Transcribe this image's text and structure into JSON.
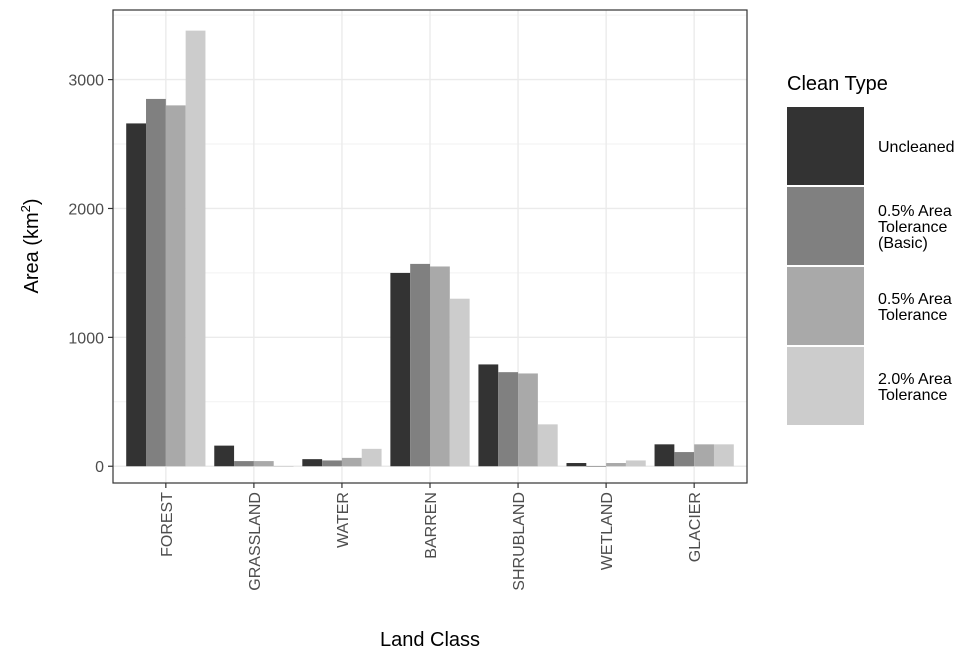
{
  "chart_data": {
    "type": "bar",
    "title": "",
    "xlabel": "Land Class",
    "ylabel": "Area (km",
    "ylabel_superscript": "2",
    "ylabel_suffix": ")",
    "categories": [
      "FOREST",
      "GRASSLAND",
      "WATER",
      "BARREN",
      "SHRUBLAND",
      "WETLAND",
      "GLACIER"
    ],
    "yticks": [
      0,
      1000,
      2000,
      3000
    ],
    "ytick_labels": [
      "0",
      "1000",
      "2000",
      "3000"
    ],
    "ylim": [
      -130,
      3540
    ],
    "grid": true,
    "legend": {
      "title": "Clean Type",
      "position": "right"
    },
    "series": [
      {
        "name": "Uncleaned",
        "label_lines": [
          "Uncleaned"
        ],
        "color": "#333333",
        "values": [
          2660,
          160,
          55,
          1500,
          790,
          25,
          170
        ]
      },
      {
        "name": "0.5% Area Tolerance (Basic)",
        "label_lines": [
          "0.5% Area",
          "Tolerance",
          "(Basic)"
        ],
        "color": "#808080",
        "values": [
          2850,
          40,
          45,
          1570,
          730,
          -5,
          110
        ]
      },
      {
        "name": "0.5% Area Tolerance",
        "label_lines": [
          "0.5% Area",
          "Tolerance"
        ],
        "color": "#a9a9a9",
        "values": [
          2800,
          40,
          65,
          1550,
          720,
          25,
          170
        ]
      },
      {
        "name": "2.0% Area Tolerance",
        "label_lines": [
          "2.0% Area",
          "Tolerance"
        ],
        "color": "#cccccc",
        "values": [
          3380,
          -5,
          135,
          1300,
          325,
          45,
          170
        ]
      }
    ]
  }
}
